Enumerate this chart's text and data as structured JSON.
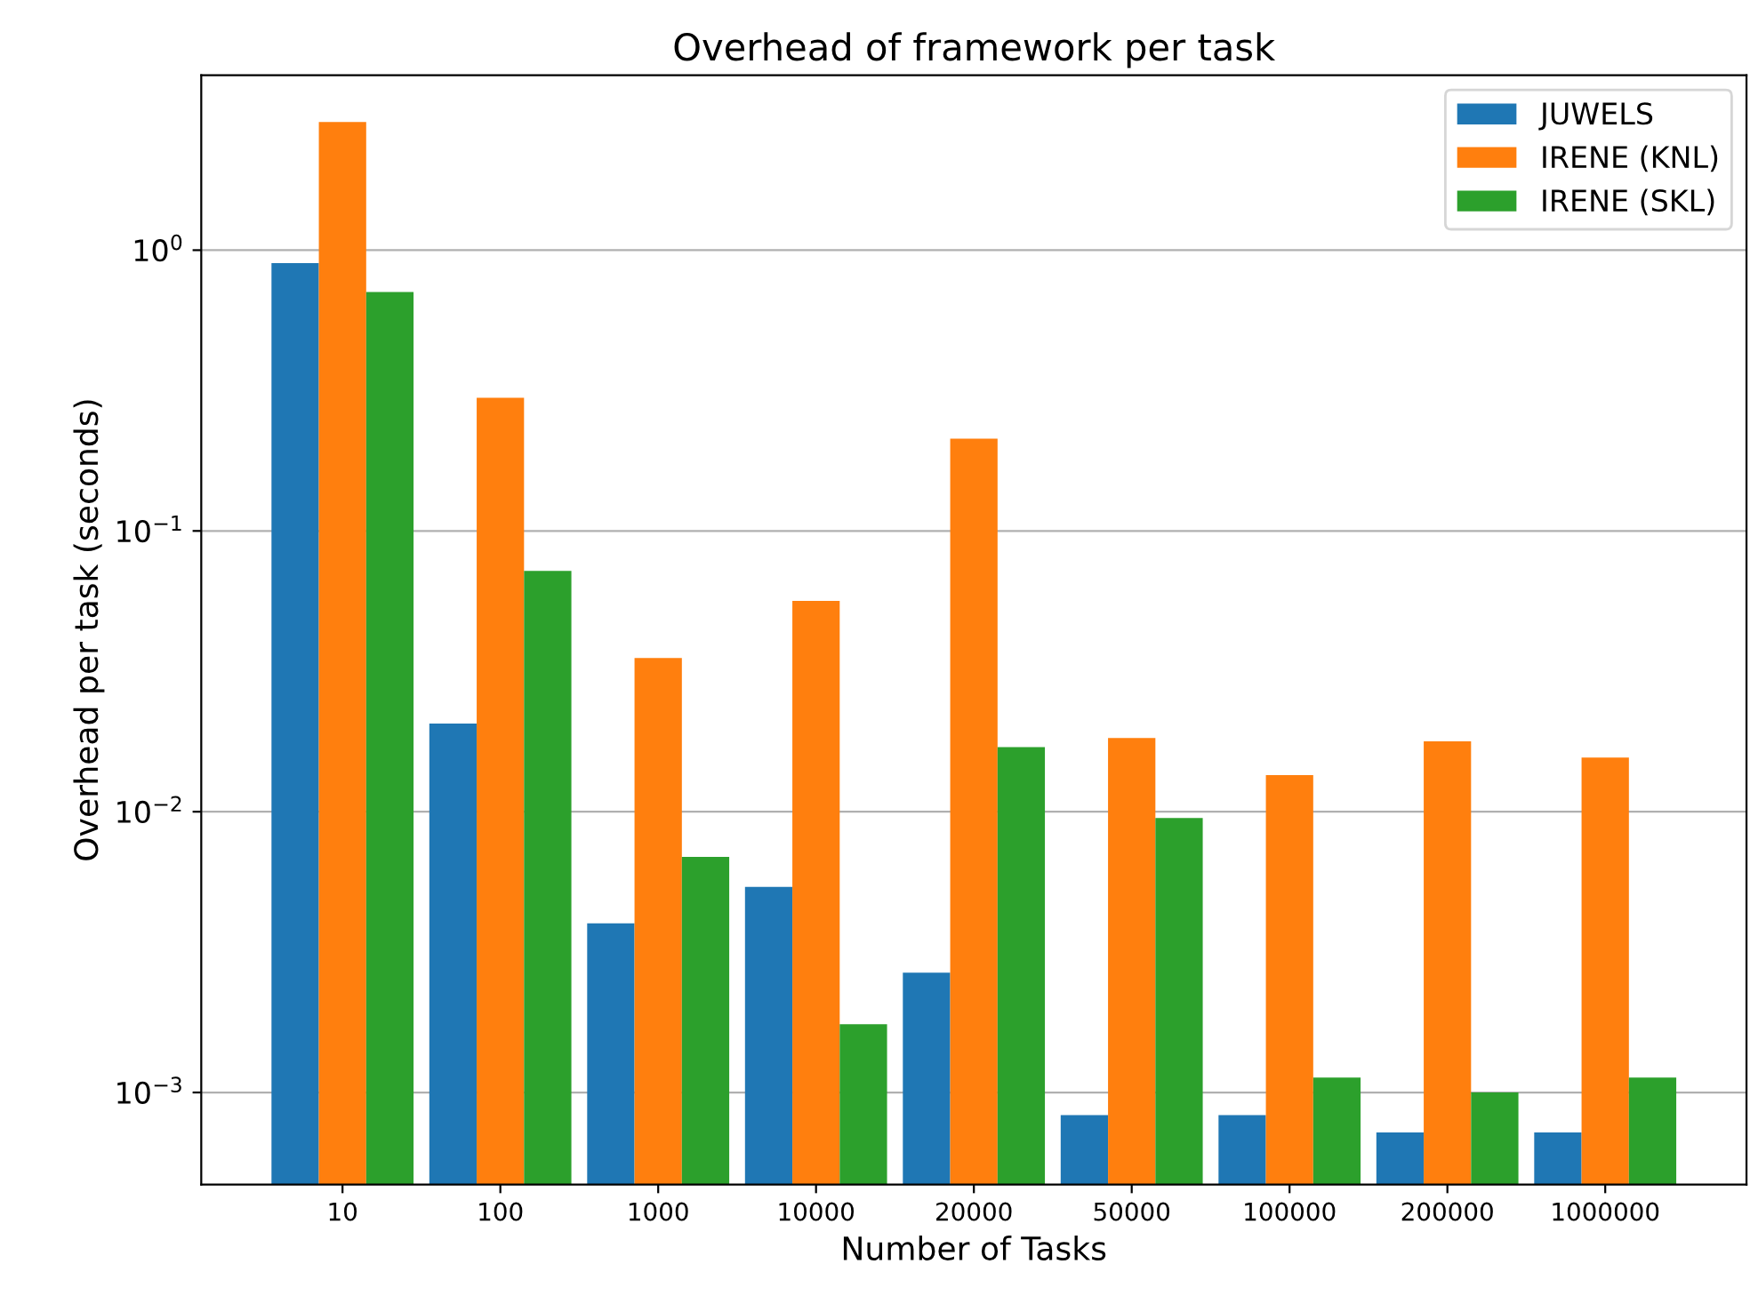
{
  "chart_data": {
    "type": "bar",
    "title": "Overhead of framework per task",
    "xlabel": "Number of Tasks",
    "ylabel": "Overhead per task (seconds)",
    "categories": [
      "10",
      "100",
      "1000",
      "10000",
      "20000",
      "50000",
      "100000",
      "200000",
      "1000000"
    ],
    "series": [
      {
        "name": "JUWELS",
        "color": "#1f77b4",
        "values": [
          0.9,
          0.0206,
          0.004,
          0.0054,
          0.00267,
          0.00083,
          0.00083,
          0.00072,
          0.00072
        ]
      },
      {
        "name": "IRENE (KNL)",
        "color": "#ff7f0e",
        "values": [
          2.86,
          0.298,
          0.0353,
          0.0563,
          0.213,
          0.0183,
          0.0135,
          0.0178,
          0.0156
        ]
      },
      {
        "name": "IRENE (SKL)",
        "color": "#2ca02c",
        "values": [
          0.71,
          0.072,
          0.0069,
          0.00175,
          0.017,
          0.0095,
          0.00113,
          0.001,
          0.00113
        ]
      }
    ],
    "log": "y",
    "ylim": [
      0.00047,
      4.2
    ],
    "yticks": [
      {
        "value": 0.001,
        "label": "10$^{−3}$"
      },
      {
        "value": 0.01,
        "label": "10$^{−2}$"
      },
      {
        "value": 0.1,
        "label": "10$^{−1}$"
      },
      {
        "value": 1,
        "label": "10$^{0}$"
      }
    ],
    "grid": "y",
    "legend": "top right"
  }
}
